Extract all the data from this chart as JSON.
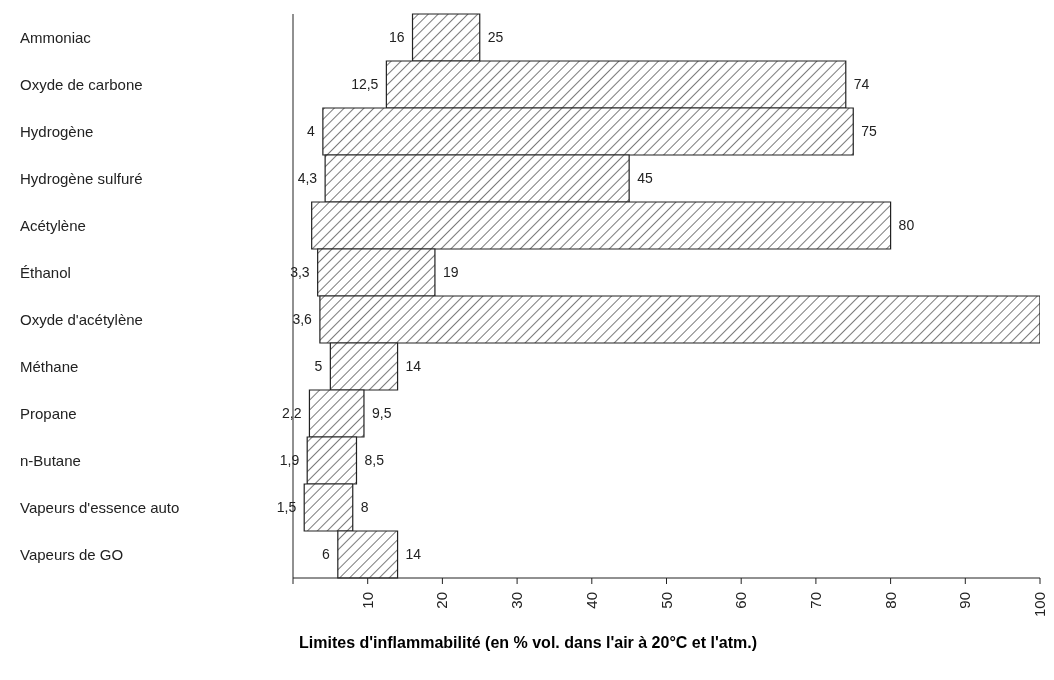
{
  "chart_data": {
    "type": "bar",
    "orientation": "horizontal",
    "xlabel": "Limites d'inflammabilité (en % vol. dans l'air à 20°C et l'atm.)",
    "categories": [
      "Ammoniac",
      "Oxyde de carbone",
      "Hydrogène",
      "Hydrogène sulfuré",
      "Acétylène",
      "Éthanol",
      "Oxyde d'acétylène",
      "Méthane",
      "Propane",
      "n-Butane",
      "Vapeurs d'essence auto",
      "Vapeurs de GO"
    ],
    "base": [
      16,
      12.5,
      4,
      4.3,
      2.5,
      3.3,
      3.6,
      5,
      2.2,
      1.9,
      1.5,
      6
    ],
    "values": [
      9,
      61.5,
      71,
      40.7,
      77.5,
      15.7,
      96.4,
      9,
      7.3,
      6.6,
      6.5,
      8
    ],
    "color": "#222222",
    "xlim": [
      0,
      100
    ],
    "xticks": [
      {
        "value": 0,
        "label": null
      },
      10,
      20,
      30,
      40,
      50,
      60,
      70,
      80,
      90,
      100
    ],
    "annotations": [
      {
        "text": "16",
        "x": 16,
        "y": "Ammoniac"
      },
      {
        "text": "25",
        "x": 25,
        "y": "Ammoniac"
      },
      {
        "text": "12,5",
        "x": 12.5,
        "y": "Oxyde de carbone"
      },
      {
        "text": "74",
        "x": 74,
        "y": "Oxyde de carbone"
      },
      {
        "text": "4",
        "x": 4,
        "y": "Hydrogène"
      },
      {
        "text": "75",
        "x": 75,
        "y": "Hydrogène"
      },
      {
        "text": "4,3",
        "x": 4.3,
        "y": "Hydrogène sulfuré"
      },
      {
        "text": "45",
        "x": 45,
        "y": "Hydrogène sulfuré"
      },
      {
        "text": "80",
        "x": 80,
        "y": "Acétylène"
      },
      {
        "text": "3,3",
        "x": 3.3,
        "y": "Éthanol"
      },
      {
        "text": "19",
        "x": 19,
        "y": "Éthanol"
      },
      {
        "text": "3,6",
        "x": 3.6,
        "y": "Oxyde d'acétylène"
      },
      {
        "text": "5",
        "x": 5,
        "y": "Méthane"
      },
      {
        "text": "14",
        "x": 14,
        "y": "Méthane"
      },
      {
        "text": "2,2",
        "x": 2.2,
        "y": "Propane"
      },
      {
        "text": "9,5",
        "x": 9.5,
        "y": "Propane"
      },
      {
        "text": "1,9",
        "x": 1.9,
        "y": "n-Butane"
      },
      {
        "text": "8,5",
        "x": 8.5,
        "y": "n-Butane"
      },
      {
        "text": "1,5",
        "x": 1.5,
        "y": "Vapeurs d'essence auto"
      },
      {
        "text": "8",
        "x": 8,
        "y": "Vapeurs d'essence auto"
      },
      {
        "text": "6",
        "x": 6,
        "y": "Vapeurs de GO"
      },
      {
        "text": "14",
        "x": 14,
        "y": "Vapeurs de GO"
      }
    ]
  }
}
